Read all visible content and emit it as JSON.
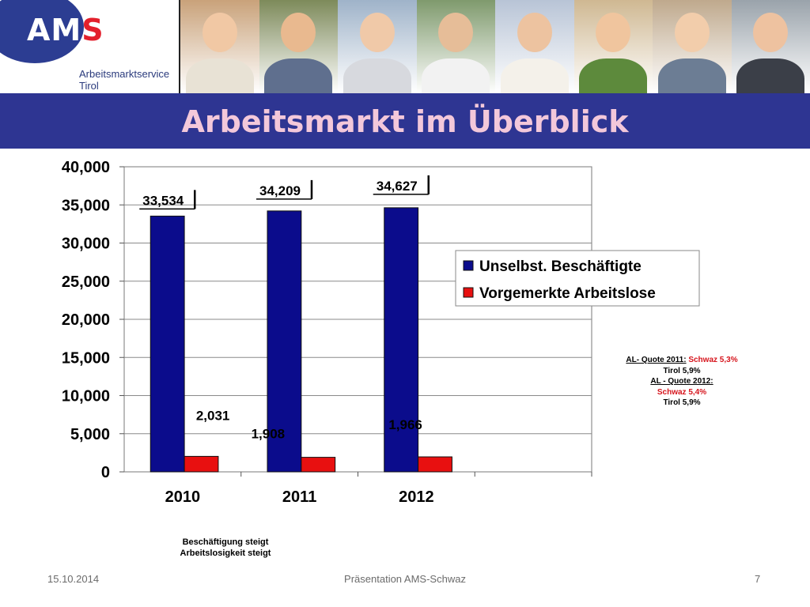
{
  "logo": {
    "brand_main": "AM",
    "brand_accent": "S",
    "line1": "Arbeitsmarktservice",
    "line2": "Tirol"
  },
  "title": "Arbeitsmarkt im Überblick",
  "chart_data": {
    "type": "bar",
    "categories": [
      "2010",
      "2011",
      "2012"
    ],
    "series": [
      {
        "name": "Unselbst. Beschäftigte",
        "color": "#0b0c8c",
        "values": [
          33534,
          34209,
          34627
        ],
        "labels": [
          "33,534",
          "34,209",
          "34,627"
        ]
      },
      {
        "name": "Vorgemerkte Arbeitslose",
        "color": "#e81010",
        "values": [
          2031,
          1908,
          1966
        ],
        "labels": [
          "2,031",
          "1,908",
          "1,966"
        ]
      }
    ],
    "ylim": [
      0,
      40000
    ],
    "yticks": [
      0,
      5000,
      10000,
      15000,
      20000,
      25000,
      30000,
      35000,
      40000
    ],
    "ytick_labels": [
      "0",
      "5,000",
      "10,000",
      "15,000",
      "20,000",
      "25,000",
      "30,000",
      "35,000",
      "40,000"
    ],
    "grid": true,
    "legend_position": "right"
  },
  "note": {
    "q2011_label": "AL- Quote 2011:",
    "q2011_schwaz": "Schwaz 5,3%",
    "q2011_tirol": "Tirol 5,9%",
    "q2012_label": "AL - Quote 2012:",
    "q2012_schwaz": "Schwaz 5,4%",
    "q2012_tirol": "Tirol 5,9%"
  },
  "caption": {
    "line1": "Beschäftigung steigt",
    "line2": "Arbeitslosigkeit steigt"
  },
  "footer": {
    "date": "15.10.2014",
    "center": "Präsentation AMS-Schwaz",
    "page": "7"
  },
  "photos": [
    {
      "name": "mother-child-photo",
      "bg": "#c9a27a",
      "skin": "#f1c8a4",
      "cloth": "#e8e2d5"
    },
    {
      "name": "guitar-woman-photo",
      "bg": "#7d8a5a",
      "skin": "#e9b98f",
      "cloth": "#5f6f8e"
    },
    {
      "name": "blonde-woman-photo",
      "bg": "#9fb3c9",
      "skin": "#f0c9a8",
      "cloth": "#d7d9de"
    },
    {
      "name": "binoculars-woman-photo",
      "bg": "#7f9a6d",
      "skin": "#e6bd98",
      "cloth": "#f2f2f2"
    },
    {
      "name": "phone-woman-photo",
      "bg": "#b8c4d6",
      "skin": "#edc3a0",
      "cloth": "#f4f1ea"
    },
    {
      "name": "smiling-woman-photo",
      "bg": "#cfb892",
      "skin": "#f0c59e",
      "cloth": "#5d8a3c"
    },
    {
      "name": "blonde-smile-photo",
      "bg": "#bfa98d",
      "skin": "#f2cdab",
      "cloth": "#6c7d94"
    },
    {
      "name": "business-woman-photo",
      "bg": "#9aa3ab",
      "skin": "#eec2a0",
      "cloth": "#3b3f48"
    }
  ]
}
